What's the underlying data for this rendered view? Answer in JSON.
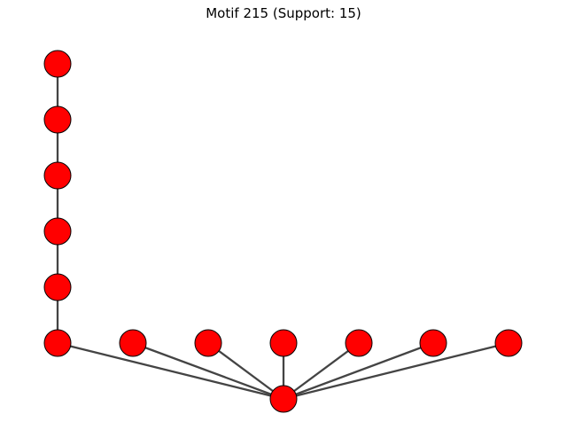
{
  "title": "Motif 215 (Support: 15)",
  "style": {
    "node_fill": "#ff0000",
    "node_stroke": "#000000",
    "edge_color": "#444444"
  },
  "graph": {
    "nodes": [
      "n1",
      "n2",
      "n3",
      "n4",
      "n5",
      "n6",
      "n7",
      "n8",
      "n9",
      "n10",
      "n11",
      "n12",
      "n13"
    ],
    "edges": [
      [
        "n1",
        "n2"
      ],
      [
        "n2",
        "n3"
      ],
      [
        "n3",
        "n4"
      ],
      [
        "n4",
        "n5"
      ],
      [
        "n5",
        "n6"
      ],
      [
        "n6",
        "n13"
      ],
      [
        "n7",
        "n13"
      ],
      [
        "n8",
        "n13"
      ],
      [
        "n9",
        "n13"
      ],
      [
        "n10",
        "n13"
      ],
      [
        "n11",
        "n13"
      ],
      [
        "n12",
        "n13"
      ]
    ]
  }
}
